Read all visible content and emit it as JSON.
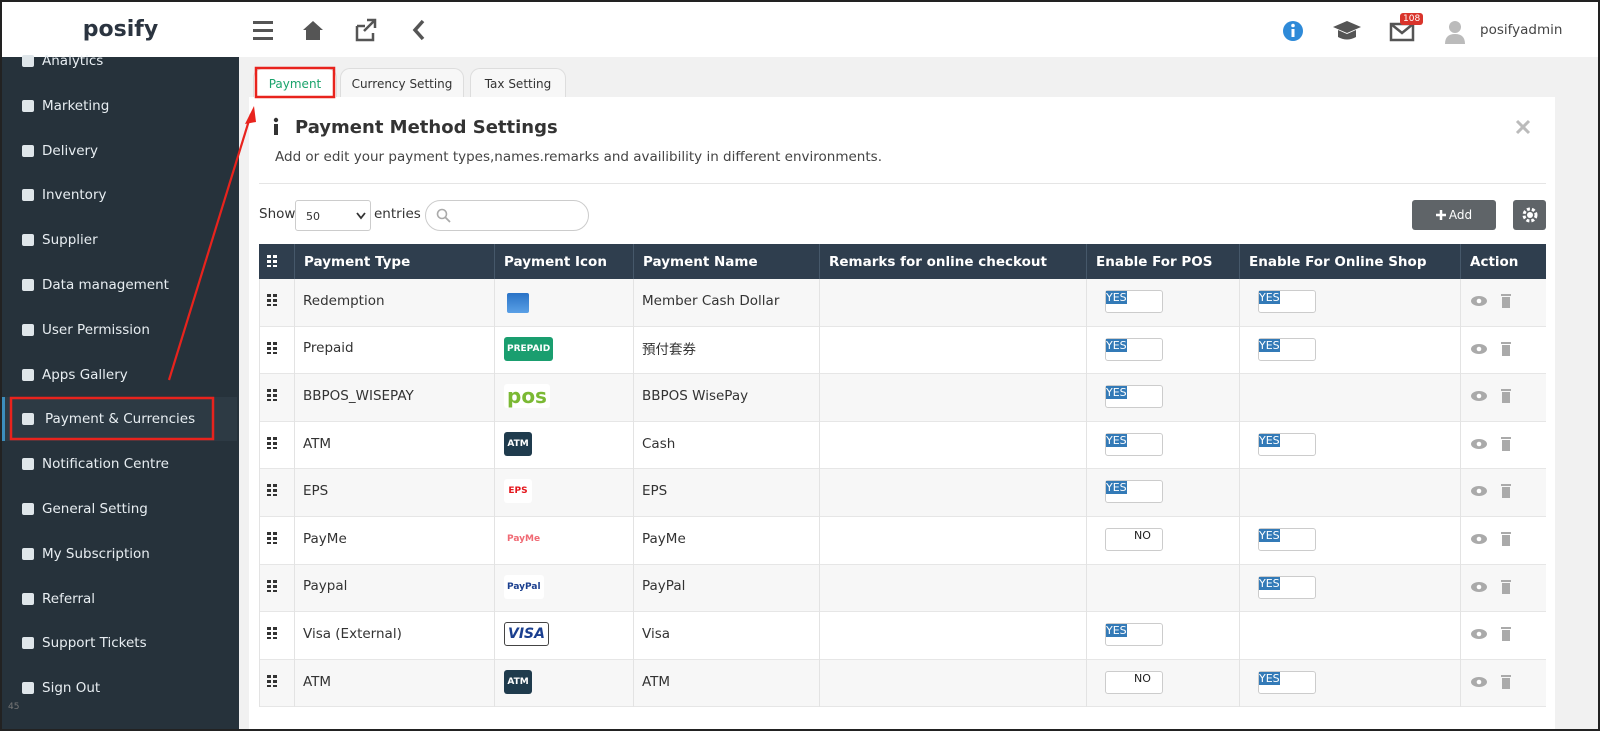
{
  "header": {
    "logo": "posify",
    "badge": "108",
    "user": "posifyadmin"
  },
  "sidebar": {
    "items": [
      "Analytics",
      "Marketing",
      "Delivery",
      "Inventory",
      "Supplier",
      "Data management",
      "User Permission",
      "Apps Gallery",
      "Payment & Currencies",
      "Notification Centre",
      "General Setting",
      "My Subscription",
      "Referral",
      "Support Tickets",
      "Sign Out"
    ],
    "footer": "45"
  },
  "tabs": [
    "Payment",
    "Currency Setting",
    "Tax Setting"
  ],
  "panel": {
    "title": "Payment Method Settings",
    "description": "Add or edit your payment types,names.remarks and availibility in different environments."
  },
  "controls": {
    "show": "Show",
    "entries_value": "50",
    "entries": "entries",
    "add": "Add"
  },
  "table": {
    "columns": [
      "Payment Type",
      "Payment Icon",
      "Payment Name",
      "Remarks for online checkout",
      "Enable For POS",
      "Enable For Online Shop",
      "Action"
    ],
    "rows": [
      {
        "type": "Redemption",
        "name": "Member Cash Dollar",
        "pos": "YES",
        "online": "YES"
      },
      {
        "type": "Prepaid",
        "icon": "PREPAID",
        "name": "預付套券",
        "pos": "YES",
        "online": "YES"
      },
      {
        "type": "BBPOS_WISEPAY",
        "icon": "pos",
        "name": "BBPOS WisePay",
        "pos": "YES"
      },
      {
        "type": "ATM",
        "icon": "ATM",
        "name": "Cash",
        "pos": "YES",
        "online": "YES"
      },
      {
        "type": "EPS",
        "icon": "EPS",
        "name": "EPS",
        "pos": "YES"
      },
      {
        "type": "PayMe",
        "icon": "PayMe",
        "name": "PayMe",
        "pos": "NO",
        "online": "YES"
      },
      {
        "type": "Paypal",
        "icon": "PayPal",
        "name": "PayPal",
        "online": "YES"
      },
      {
        "type": "Visa (External)",
        "icon": "VISA",
        "name": "Visa",
        "pos": "YES"
      },
      {
        "type": "ATM",
        "icon": "ATM",
        "name": "ATM",
        "pos": "NO",
        "online": "YES"
      }
    ]
  }
}
